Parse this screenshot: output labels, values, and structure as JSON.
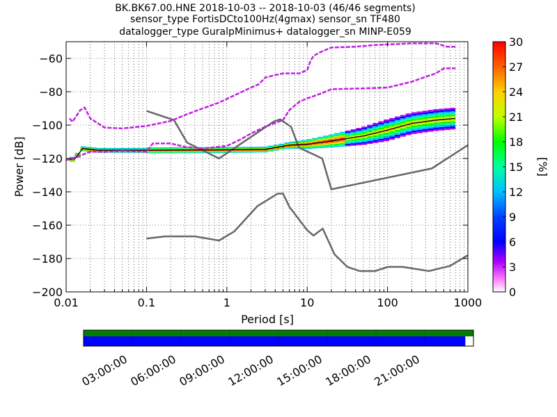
{
  "chart_data": {
    "type": "heatmap",
    "title_lines": [
      "BK.BK67.00.HNE   2018-10-03 -- 2018-10-03  (46/46 segments)",
      "sensor_type FortisDCto100Hz(4gmax) sensor_sn TF480",
      "datalogger_type GuralpMinimus+ datalogger_sn MINP-E059"
    ],
    "xlabel": "Period [s]",
    "ylabel": "Power [dB]",
    "xscale": "log",
    "xlim": [
      0.01,
      1000
    ],
    "ylim": [
      -200,
      -50
    ],
    "x_ticks": [
      0.01,
      0.1,
      1,
      10,
      100,
      1000
    ],
    "x_tick_labels": [
      "0.01",
      "0.1",
      "1",
      "10",
      "100",
      "1000"
    ],
    "y_ticks": [
      -200,
      -180,
      -160,
      -140,
      -120,
      -100,
      -80,
      -60
    ],
    "y_tick_labels": [
      "−200",
      "−180",
      "−160",
      "−140",
      "−120",
      "−100",
      "−80",
      "−60"
    ],
    "grid": "dotted",
    "colorbar": {
      "label": "[%]",
      "range": [
        0,
        30
      ],
      "ticks": [
        0,
        3,
        6,
        9,
        12,
        15,
        18,
        21,
        24,
        27,
        30
      ],
      "tick_labels": [
        "0",
        "3",
        "6",
        "9",
        "12",
        "15",
        "18",
        "21",
        "24",
        "27",
        "30"
      ]
    },
    "series": [
      {
        "role": "new-high-noise-model",
        "color": "#666666",
        "points": [
          [
            0.1,
            -91.5
          ],
          [
            0.22,
            -97
          ],
          [
            0.32,
            -110.5
          ],
          [
            0.8,
            -120
          ],
          [
            3.8,
            -98
          ],
          [
            4.6,
            -96.5
          ],
          [
            6.3,
            -101
          ],
          [
            7.9,
            -113.5
          ],
          [
            15.4,
            -120
          ],
          [
            20,
            -138.5
          ],
          [
            354.8,
            -126
          ],
          [
            1000,
            -112
          ]
        ]
      },
      {
        "role": "new-low-noise-model",
        "color": "#666666",
        "points": [
          [
            0.1,
            -168
          ],
          [
            0.17,
            -166.7
          ],
          [
            0.4,
            -166.7
          ],
          [
            0.8,
            -169.2
          ],
          [
            1.24,
            -163.7
          ],
          [
            2.4,
            -148.6
          ],
          [
            4.3,
            -141.1
          ],
          [
            5,
            -141.1
          ],
          [
            6,
            -149
          ],
          [
            10,
            -163
          ],
          [
            12,
            -166.2
          ],
          [
            15.6,
            -162.1
          ],
          [
            21.9,
            -177.5
          ],
          [
            31.6,
            -185
          ],
          [
            45,
            -187.5
          ],
          [
            70,
            -187.5
          ],
          [
            101,
            -185
          ],
          [
            154,
            -185
          ],
          [
            328,
            -187.5
          ],
          [
            600,
            -184.4
          ],
          [
            1000,
            -178
          ]
        ]
      },
      {
        "role": "mean-psd",
        "color": "#000000",
        "points": [
          [
            0.01,
            -121
          ],
          [
            0.013,
            -120
          ],
          [
            0.016,
            -114
          ],
          [
            0.025,
            -115
          ],
          [
            0.1,
            -115
          ],
          [
            1,
            -114.8
          ],
          [
            3,
            -114.5
          ],
          [
            6,
            -112
          ],
          [
            10,
            -111.5
          ],
          [
            20,
            -109.5
          ],
          [
            50,
            -106.5
          ],
          [
            100,
            -103
          ],
          [
            200,
            -99
          ],
          [
            400,
            -97
          ],
          [
            700,
            -96
          ]
        ]
      },
      {
        "role": "max-envelope",
        "color": "#c020e0",
        "points": [
          [
            0.011,
            -96
          ],
          [
            0.012,
            -98
          ],
          [
            0.015,
            -91
          ],
          [
            0.017,
            -89.5
          ],
          [
            0.02,
            -96
          ],
          [
            0.03,
            -101.5
          ],
          [
            0.05,
            -102
          ],
          [
            0.08,
            -101
          ],
          [
            0.1,
            -100.5
          ],
          [
            0.2,
            -97.5
          ],
          [
            0.3,
            -94
          ],
          [
            0.5,
            -90
          ],
          [
            0.8,
            -86.5
          ],
          [
            1.2,
            -82.5
          ],
          [
            2,
            -77.5
          ],
          [
            2.5,
            -75.5
          ],
          [
            3,
            -71.5
          ],
          [
            4,
            -70
          ],
          [
            5,
            -69
          ],
          [
            8,
            -69
          ],
          [
            10,
            -67
          ],
          [
            11,
            -61.5
          ],
          [
            12,
            -58.5
          ],
          [
            15,
            -56
          ],
          [
            20,
            -53.5
          ],
          [
            40,
            -53
          ],
          [
            70,
            -52
          ],
          [
            120,
            -51.5
          ],
          [
            200,
            -51
          ],
          [
            400,
            -51
          ],
          [
            550,
            -53
          ],
          [
            700,
            -53
          ]
        ]
      },
      {
        "role": "min-envelope",
        "color": "#c020e0",
        "points": [
          [
            0.01,
            -121
          ],
          [
            0.012,
            -120
          ],
          [
            0.02,
            -116
          ],
          [
            0.03,
            -116
          ],
          [
            0.05,
            -115.5
          ],
          [
            0.1,
            -116
          ],
          [
            0.12,
            -111
          ],
          [
            0.2,
            -111
          ],
          [
            0.3,
            -113
          ],
          [
            0.5,
            -114
          ],
          [
            1,
            -112.5
          ],
          [
            1.5,
            -108.5
          ],
          [
            2,
            -105
          ],
          [
            3,
            -101
          ],
          [
            5,
            -97
          ],
          [
            6,
            -91
          ],
          [
            8,
            -86
          ],
          [
            10,
            -84
          ],
          [
            15,
            -81
          ],
          [
            20,
            -78.5
          ],
          [
            50,
            -78
          ],
          [
            100,
            -77.5
          ],
          [
            200,
            -74
          ],
          [
            300,
            -71
          ],
          [
            400,
            -69
          ],
          [
            500,
            -66
          ],
          [
            700,
            -66
          ]
        ]
      }
    ]
  },
  "timeline": {
    "labels": [
      "03:00:00",
      "06:00:00",
      "09:00:00",
      "12:00:00",
      "15:00:00",
      "18:00:00",
      "21:00:00"
    ],
    "label_hours": [
      3,
      6,
      9,
      12,
      15,
      18,
      21
    ],
    "range_hours": [
      0,
      24
    ],
    "data_coverage_end_hour": 23.5,
    "colors": {
      "top": "#008000",
      "bottom": "#0000ff"
    }
  }
}
